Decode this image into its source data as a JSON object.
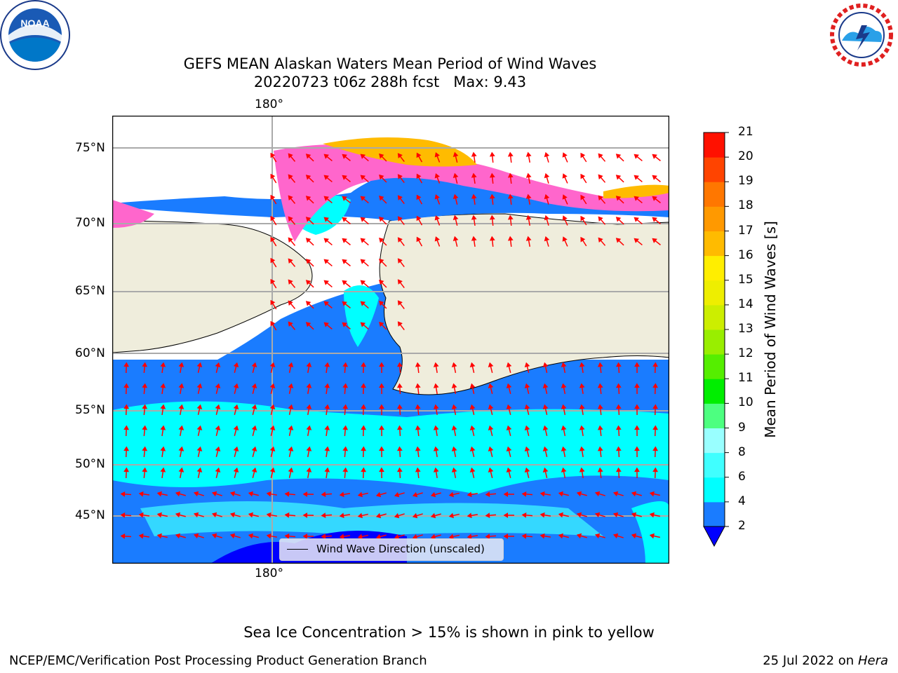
{
  "title_line1": "GEFS MEAN Alaskan Waters Mean Period of Wind Waves",
  "title_line2": "20220723 t06z 288h fcst   Max: 9.43",
  "logos": {
    "left": "NOAA",
    "right": "NATIONAL WEATHER SERVICE"
  },
  "map": {
    "lon_label_top": "180°",
    "lon_label_bottom": "180°",
    "lat_labels": [
      "75°N",
      "70°N",
      "65°N",
      "60°N",
      "55°N",
      "50°N",
      "45°N"
    ],
    "legend_label": "Wind Wave Direction (unscaled)",
    "colors": {
      "land": "#efeddc",
      "ocean_low": "#1a7cff",
      "ocean_mid": "#00ffff",
      "ocean_min": "#0000ff",
      "arrow": "#ff0000",
      "ice": "#ff66cc"
    }
  },
  "colorbar": {
    "label": "Mean Period of Wind Waves [s]",
    "ticks": [
      "2",
      "4",
      "6",
      "8",
      "9",
      "10",
      "11",
      "12",
      "13",
      "14",
      "15",
      "16",
      "17",
      "18",
      "19",
      "20",
      "21"
    ],
    "colors": [
      "#0000ff",
      "#1a7cff",
      "#00ffff",
      "#40ffff",
      "#99ffff",
      "#4dff80",
      "#00ee00",
      "#55ee00",
      "#99ee00",
      "#ccee00",
      "#eeee00",
      "#ffee00",
      "#ffbb00",
      "#ff9900",
      "#ff7700",
      "#ff4400",
      "#ff1100",
      "#ff0000"
    ]
  },
  "footer": {
    "note": "Sea Ice Concentration > 15% is shown in pink to yellow",
    "left": "NCEP/EMC/Verification Post Processing Product Generation Branch",
    "right_date": "25 Jul 2022 on",
    "right_machine": "Hera"
  }
}
